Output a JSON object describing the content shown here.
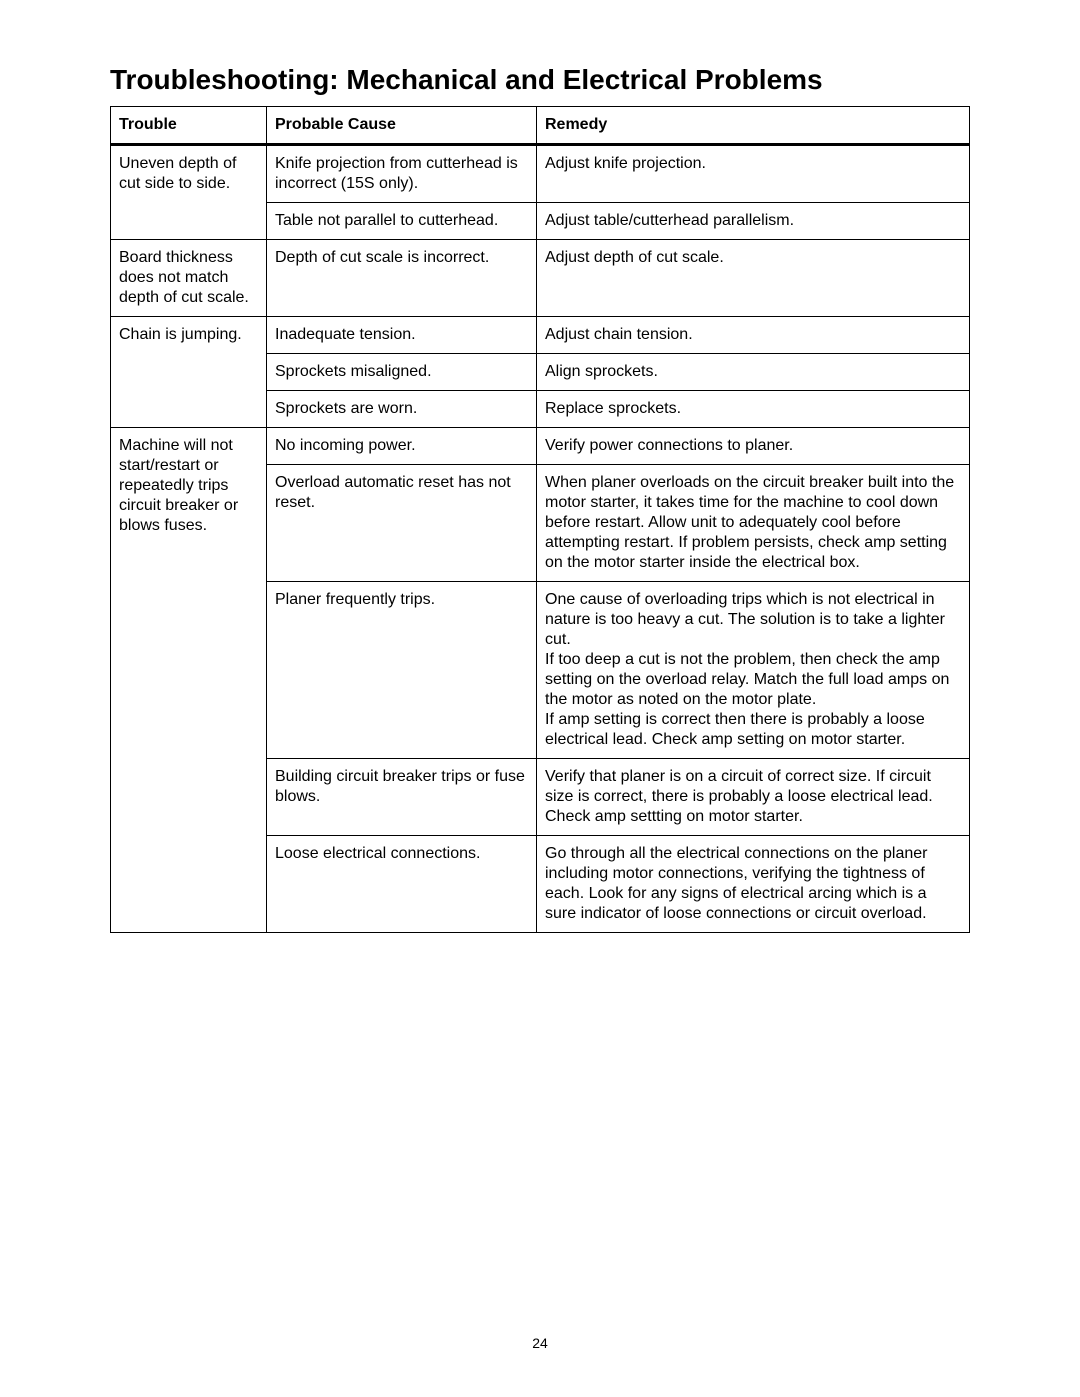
{
  "title": "Troubleshooting: Mechanical and Electrical Problems",
  "page_number": "24",
  "headers": {
    "trouble": "Trouble",
    "cause": "Probable Cause",
    "remedy": "Remedy"
  },
  "rows": [
    {
      "trouble": "Uneven depth of cut side to side.",
      "trouble_rowspan": 2,
      "cause": "Knife projection from cutterhead is incorrect (15S only).",
      "remedy": "Adjust knife projection."
    },
    {
      "cause": "Table not parallel to cutterhead.",
      "remedy": "Adjust table/cutterhead parallelism."
    },
    {
      "trouble": "Board thickness does not match depth of cut scale.",
      "trouble_rowspan": 1,
      "cause": "Depth of cut scale is incorrect.",
      "remedy": "Adjust depth of cut scale."
    },
    {
      "trouble": "Chain is jumping.",
      "trouble_rowspan": 3,
      "cause": "Inadequate tension.",
      "remedy": "Adjust chain tension."
    },
    {
      "cause": "Sprockets misaligned.",
      "remedy": "Align sprockets."
    },
    {
      "cause": "Sprockets are worn.",
      "remedy": "Replace sprockets."
    },
    {
      "trouble": "Machine will not start/restart or repeatedly trips circuit breaker or blows fuses.",
      "trouble_rowspan": 5,
      "cause": "No incoming power.",
      "remedy": "Verify power connections to planer."
    },
    {
      "cause": "Overload automatic reset has not reset.",
      "remedy": "When planer overloads on the circuit breaker built into the motor starter, it takes time for the machine to cool down  before restart. Allow unit to adequately cool before attempting restart. If problem persists, check amp setting on the motor starter inside the electrical box."
    },
    {
      "cause": "Planer frequently trips.",
      "remedy": "One cause of overloading trips which is not electrical in nature is too heavy a cut. The solution is to take a lighter cut.\nIf too deep a cut is not the problem, then check the amp setting on the overload relay. Match the full load amps on the motor as noted on the motor plate.\nIf amp setting is correct then there is probably a loose electrical lead. Check amp setting on motor starter."
    },
    {
      "cause": "Building circuit breaker trips or fuse blows.",
      "remedy": "Verify that planer is on a circuit of correct size. If circuit size is correct, there is probably a loose electrical lead. Check amp settting on motor starter."
    },
    {
      "cause": "Loose electrical connections.",
      "remedy": "Go through all the electrical connections on the planer including motor connections, verifying the tightness of each. Look for any signs of electrical arcing which is a sure indicator of loose connections or circuit overload."
    }
  ]
}
